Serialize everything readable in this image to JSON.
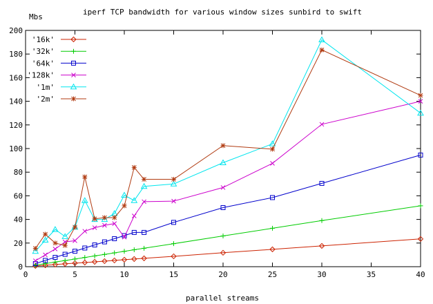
{
  "chart_data": {
    "type": "line",
    "title": "iperf TCP bandwidth for various window sizes  sunbird to swift",
    "xlabel": "parallel streams",
    "ylabel": "Mbs",
    "xlim": [
      0,
      40
    ],
    "ylim": [
      0,
      200
    ],
    "xticks": [
      0,
      5,
      10,
      15,
      20,
      25,
      30,
      35,
      40
    ],
    "yticks": [
      0,
      20,
      40,
      60,
      80,
      100,
      120,
      140,
      160,
      180,
      200
    ],
    "grid": false,
    "legend_position": "top-left",
    "series": [
      {
        "name": "'16k'",
        "color": "#cc2200",
        "marker": "diamond",
        "points": [
          [
            1,
            0.6
          ],
          [
            2,
            1.2
          ],
          [
            3,
            1.8
          ],
          [
            4,
            2.4
          ],
          [
            5,
            3.0
          ],
          [
            6,
            3.5
          ],
          [
            7,
            4.1
          ],
          [
            8,
            4.7
          ],
          [
            9,
            5.3
          ],
          [
            10,
            5.9
          ],
          [
            11,
            6.5
          ],
          [
            12,
            7.1
          ],
          [
            15,
            8.8
          ],
          [
            20,
            11.8
          ],
          [
            25,
            14.7
          ],
          [
            30,
            17.6
          ],
          [
            40,
            23.5
          ]
        ]
      },
      {
        "name": "'32k'",
        "color": "#00cc00",
        "marker": "plus",
        "points": [
          [
            1,
            1.3
          ],
          [
            2,
            2.6
          ],
          [
            3,
            3.9
          ],
          [
            4,
            5.2
          ],
          [
            5,
            6.5
          ],
          [
            6,
            7.8
          ],
          [
            7,
            9.1
          ],
          [
            8,
            10.4
          ],
          [
            9,
            11.7
          ],
          [
            10,
            13.0
          ],
          [
            11,
            14.3
          ],
          [
            12,
            15.6
          ],
          [
            15,
            19.5
          ],
          [
            20,
            26.0
          ],
          [
            25,
            32.5
          ],
          [
            30,
            39.0
          ],
          [
            40,
            51.5
          ]
        ]
      },
      {
        "name": "'64k'",
        "color": "#0000cc",
        "marker": "square",
        "points": [
          [
            1,
            2.6
          ],
          [
            2,
            5.3
          ],
          [
            3,
            7.9
          ],
          [
            4,
            10.5
          ],
          [
            5,
            13.1
          ],
          [
            6,
            15.8
          ],
          [
            7,
            18.4
          ],
          [
            8,
            21.0
          ],
          [
            9,
            23.7
          ],
          [
            10,
            26.3
          ],
          [
            11,
            29.0
          ],
          [
            12,
            29.0
          ],
          [
            15,
            37.5
          ],
          [
            20,
            50.0
          ],
          [
            25,
            58.5
          ],
          [
            30,
            70.5
          ],
          [
            40,
            94.5
          ]
        ]
      },
      {
        "name": "'128k'",
        "color": "#cc00cc",
        "marker": "x",
        "points": [
          [
            1,
            5.0
          ],
          [
            2,
            10.0
          ],
          [
            3,
            15.0
          ],
          [
            4,
            21.0
          ],
          [
            5,
            22.0
          ],
          [
            6,
            30.0
          ],
          [
            7,
            33.0
          ],
          [
            8,
            35.0
          ],
          [
            9,
            36.5
          ],
          [
            10,
            25.0
          ],
          [
            11,
            43.0
          ],
          [
            12,
            55.0
          ],
          [
            15,
            55.5
          ],
          [
            20,
            67.0
          ],
          [
            25,
            87.5
          ],
          [
            30,
            120.5
          ],
          [
            40,
            140.0
          ]
        ]
      },
      {
        "name": "'1m'",
        "color": "#00e5ee",
        "marker": "triangle",
        "points": [
          [
            1,
            13.0
          ],
          [
            2,
            22.5
          ],
          [
            3,
            31.5
          ],
          [
            4,
            25.5
          ],
          [
            5,
            33.5
          ],
          [
            6,
            56.0
          ],
          [
            7,
            40.0
          ],
          [
            8,
            40.0
          ],
          [
            9,
            45.0
          ],
          [
            10,
            60.5
          ],
          [
            11,
            56.0
          ],
          [
            12,
            68.0
          ],
          [
            15,
            70.0
          ],
          [
            20,
            88.0
          ],
          [
            25,
            104.0
          ],
          [
            30,
            192.0
          ],
          [
            40,
            130.0
          ]
        ]
      },
      {
        "name": "'2m'",
        "color": "#b03a10",
        "marker": "star",
        "points": [
          [
            1,
            15.5
          ],
          [
            2,
            27.5
          ],
          [
            3,
            20.0
          ],
          [
            4,
            18.0
          ],
          [
            5,
            33.5
          ],
          [
            6,
            76.0
          ],
          [
            7,
            40.5
          ],
          [
            8,
            41.5
          ],
          [
            9,
            41.5
          ],
          [
            10,
            51.5
          ],
          [
            11,
            84.0
          ],
          [
            12,
            74.0
          ],
          [
            15,
            74.0
          ],
          [
            20,
            102.5
          ],
          [
            25,
            99.5
          ],
          [
            30,
            183.5
          ],
          [
            40,
            145.0
          ]
        ]
      }
    ]
  }
}
